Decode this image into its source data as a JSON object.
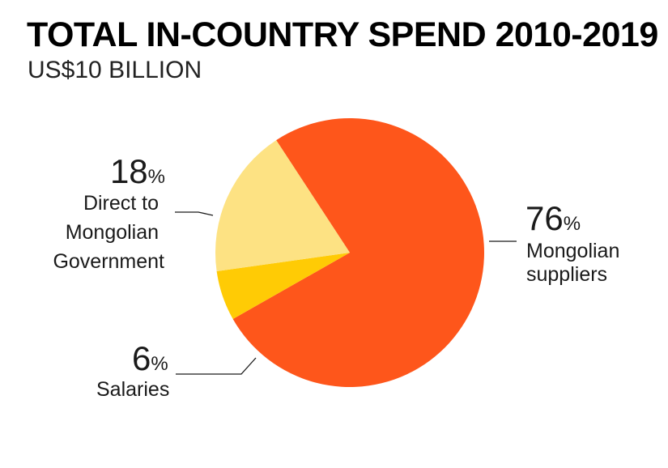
{
  "chart_data": {
    "type": "pie",
    "title": "TOTAL IN-COUNTRY SPEND 2010-2019",
    "subtitle": "US$10 BILLION",
    "slices": [
      {
        "label_lines": [
          "Mongolian",
          "suppliers"
        ],
        "value": 76,
        "percent_text": "76",
        "color": "#fe561b"
      },
      {
        "label_lines": [
          "Salaries"
        ],
        "value": 6,
        "percent_text": "6",
        "color": "#ffcb05"
      },
      {
        "label_lines": [
          "Direct to",
          "Mongolian",
          "Government"
        ],
        "value": 18,
        "percent_text": "18",
        "color": "#fde283"
      }
    ],
    "percent_sign": "%"
  }
}
